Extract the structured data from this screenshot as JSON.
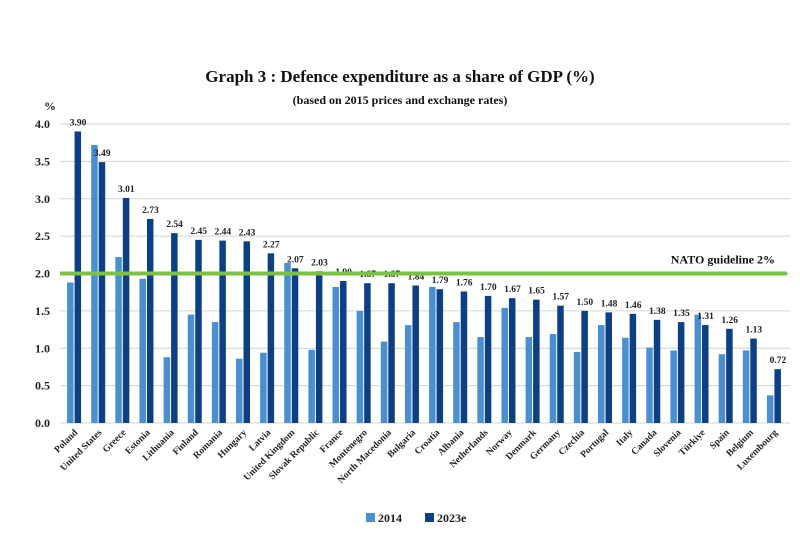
{
  "chart_data": {
    "type": "bar",
    "title": "Graph 3 : Defence expenditure as a share of GDP (%)",
    "subtitle": "(based on 2015 prices and exchange rates)",
    "ylabel": "%",
    "ylim": [
      0,
      4.0
    ],
    "yticks": [
      "0.0",
      "0.5",
      "1.0",
      "1.5",
      "2.0",
      "2.5",
      "3.0",
      "3.5",
      "4.0"
    ],
    "grid": true,
    "legend_position": "bottom",
    "categories": [
      "Poland",
      "United States",
      "Greece",
      "Estonia",
      "Lithuania",
      "Finland",
      "Romania",
      "Hungary",
      "Latvia",
      "United Kingdom",
      "Slovak Republic",
      "France",
      "Montenegro",
      "North Macedonia",
      "Bulgaria",
      "Croatia",
      "Albania",
      "Netherlands",
      "Norway",
      "Denmark",
      "Germany",
      "Czechia",
      "Portugal",
      "Italy",
      "Canada",
      "Slovenia",
      "Türkiye",
      "Spain",
      "Belgium",
      "Luxembourg"
    ],
    "series": [
      {
        "name": "2014",
        "color": "#4a8fd0",
        "values": [
          1.88,
          3.72,
          2.22,
          1.93,
          0.88,
          1.45,
          1.35,
          0.86,
          0.94,
          2.14,
          0.98,
          1.82,
          1.5,
          1.09,
          1.31,
          1.82,
          1.35,
          1.15,
          1.54,
          1.15,
          1.19,
          0.95,
          1.31,
          1.14,
          1.01,
          0.97,
          1.45,
          0.92,
          0.97,
          0.37
        ]
      },
      {
        "name": "2023e",
        "color": "#0d3f85",
        "values": [
          3.9,
          3.49,
          3.01,
          2.73,
          2.54,
          2.45,
          2.44,
          2.43,
          2.27,
          2.07,
          2.03,
          1.9,
          1.87,
          1.87,
          1.84,
          1.79,
          1.76,
          1.7,
          1.67,
          1.65,
          1.57,
          1.5,
          1.48,
          1.46,
          1.38,
          1.35,
          1.31,
          1.26,
          1.13,
          0.72
        ],
        "labels": [
          "3.90",
          "3.49",
          "3.01",
          "2.73",
          "2.54",
          "2.45",
          "2.44",
          "2.43",
          "2.27",
          "2.07",
          "2.03",
          "1.90",
          "1.87",
          "1.87",
          "1.84",
          "1.79",
          "1.76",
          "1.70",
          "1.67",
          "1.65",
          "1.57",
          "1.50",
          "1.48",
          "1.46",
          "1.38",
          "1.35",
          "1.31",
          "1.26",
          "1.13",
          "0.72"
        ]
      }
    ],
    "reference_line": {
      "value": 2.0,
      "label": "NATO guideline 2%",
      "color": "#7cc242"
    }
  }
}
